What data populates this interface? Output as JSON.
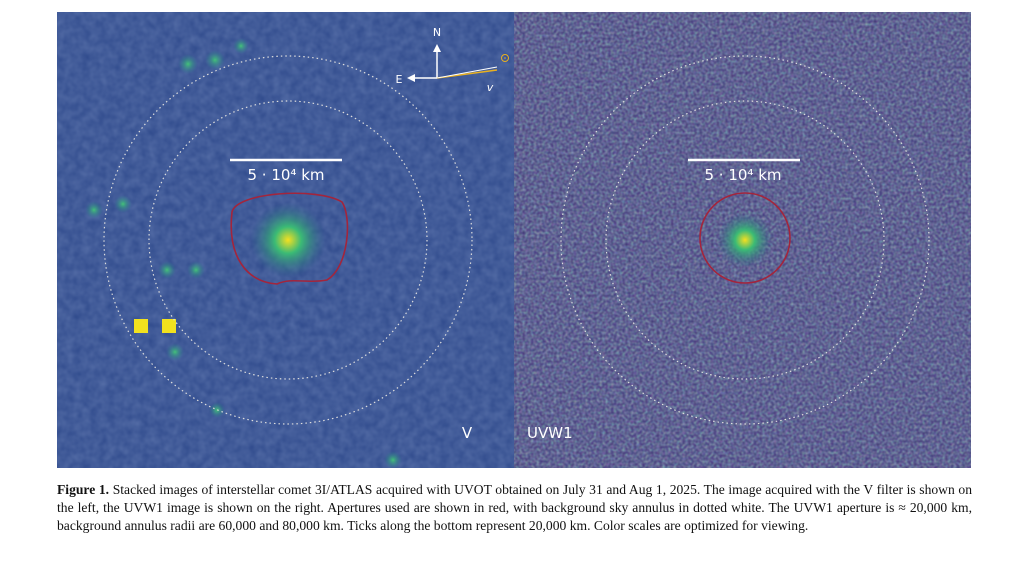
{
  "figure": {
    "panels": [
      {
        "label": "V",
        "scale_label": "5 · 10⁴ km"
      },
      {
        "label": "UVW1",
        "scale_label": "5 · 10⁴ km"
      }
    ],
    "compass": {
      "north": "N",
      "east": "E",
      "velocity": "v"
    },
    "caption": {
      "label": "Figure 1.",
      "text": "Stacked images of interstellar comet 3I/ATLAS acquired with UVOT obtained on July 31 and Aug 1, 2025. The image acquired with the V filter is shown on the left, the UVW1 image is shown on the right. Apertures used are shown in red, with background sky annulus in dotted white. The UVW1 aperture is ≈ 20,000 km, background annulus radii are 60,000 and 80,000 km. Ticks along the bottom represent 20,000 km. Color scales are optimized for viewing."
    }
  }
}
